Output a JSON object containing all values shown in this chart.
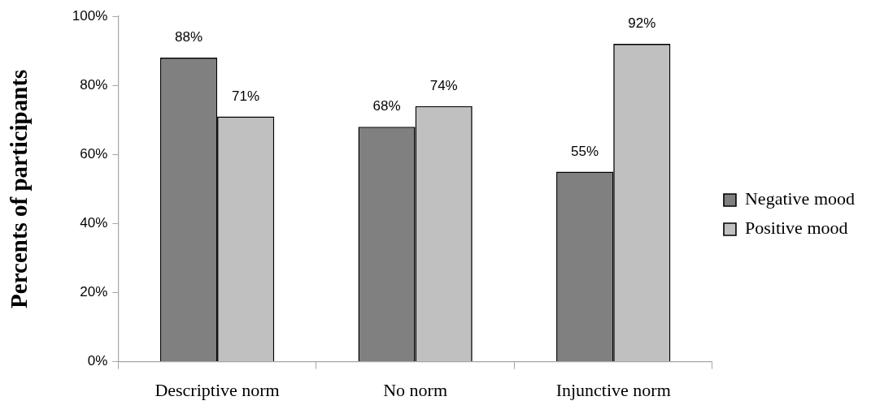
{
  "chart_data": {
    "type": "bar",
    "ylabel": "Percents of participants",
    "categories": [
      "Descriptive norm",
      "No norm",
      "Injunctive norm"
    ],
    "series": [
      {
        "name": "Negative mood",
        "color": "#808080",
        "values": [
          88,
          68,
          55
        ],
        "value_labels": [
          "88%",
          "68%",
          "55%"
        ]
      },
      {
        "name": "Positive mood",
        "color": "#c0c0c0",
        "values": [
          71,
          74,
          92
        ],
        "value_labels": [
          "71%",
          "74%",
          "92%"
        ]
      }
    ],
    "ylim": [
      0,
      100
    ],
    "yticks": [
      {
        "value": 0,
        "label": "0%"
      },
      {
        "value": 20,
        "label": "20%"
      },
      {
        "value": 40,
        "label": "40%"
      },
      {
        "value": 60,
        "label": "60%"
      },
      {
        "value": 80,
        "label": "80%"
      },
      {
        "value": 100,
        "label": "100%"
      }
    ],
    "legend": "right"
  }
}
